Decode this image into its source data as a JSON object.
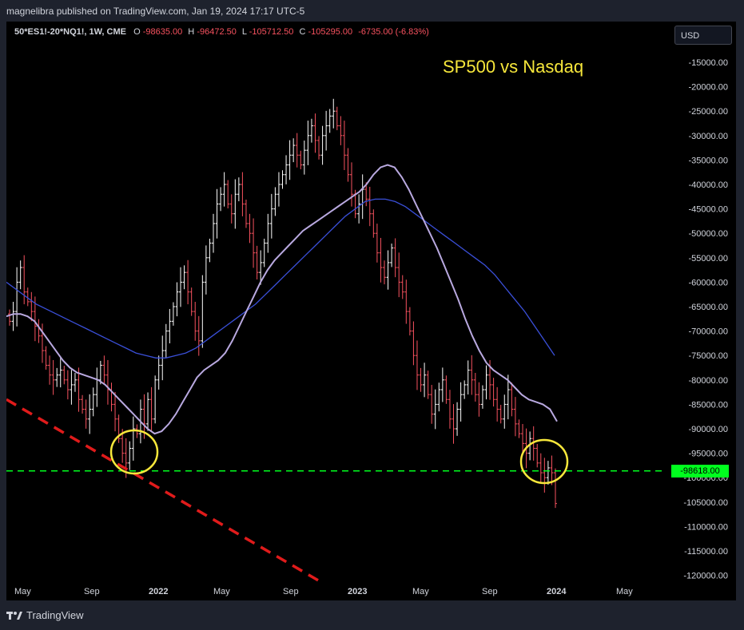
{
  "header": {
    "published": "magnelibra published on TradingView.com, Jan 19, 2024 17:17 UTC-5"
  },
  "legend": {
    "symbol": "50*ES1!-20*NQ1!, 1W, CME",
    "o_label": "O",
    "o_value": "-98635.00",
    "h_label": "H",
    "h_value": "-96472.50",
    "l_label": "L",
    "l_value": "-105712.50",
    "c_label": "C",
    "c_value": "-105295.00",
    "change": "-6735.00 (-6.83%)"
  },
  "currency_button": "USD",
  "price_tag": "-98618.00",
  "footer": {
    "brand": "TradingView"
  },
  "colors": {
    "up": "#ffffff",
    "down": "#f7525f",
    "ma_fast": "#b9a9e0",
    "ma_slow": "#3a4fd8",
    "support": "#00ff1e",
    "trendline": "#e01b1b",
    "circle": "#f7e73b"
  },
  "chart_data": {
    "type": "ohlc",
    "title": "SP500 vs Nasdaq",
    "ylim": [
      -123000,
      -11000
    ],
    "y_ticks": [
      "-15000.00",
      "-20000.00",
      "-25000.00",
      "-30000.00",
      "-35000.00",
      "-40000.00",
      "-45000.00",
      "-50000.00",
      "-55000.00",
      "-60000.00",
      "-65000.00",
      "-70000.00",
      "-75000.00",
      "-80000.00",
      "-85000.00",
      "-90000.00",
      "-95000.00",
      "-100000.00",
      "-105000.00",
      "-110000.00",
      "-115000.00",
      "-120000.00"
    ],
    "x_ticks": [
      {
        "label": "May",
        "bold": false
      },
      {
        "label": "Sep",
        "bold": false
      },
      {
        "label": "2022",
        "bold": true
      },
      {
        "label": "May",
        "bold": false
      },
      {
        "label": "Sep",
        "bold": false
      },
      {
        "label": "2023",
        "bold": true
      },
      {
        "label": "May",
        "bold": false
      },
      {
        "label": "Sep",
        "bold": false
      },
      {
        "label": "2024",
        "bold": true
      },
      {
        "label": "May",
        "bold": false
      }
    ],
    "price_closes": [
      -68000,
      -66000,
      -60000,
      -57000,
      -62000,
      -64000,
      -66000,
      -69000,
      -71000,
      -74000,
      -77000,
      -79000,
      -80000,
      -79000,
      -78000,
      -80000,
      -82000,
      -81000,
      -80000,
      -84000,
      -86000,
      -88000,
      -86000,
      -83000,
      -80000,
      -77000,
      -79000,
      -82000,
      -85000,
      -88000,
      -92000,
      -95000,
      -97000,
      -94000,
      -90000,
      -91000,
      -86000,
      -89000,
      -84000,
      -88000,
      -80000,
      -77000,
      -74000,
      -70000,
      -68000,
      -65000,
      -62000,
      -60000,
      -58000,
      -62000,
      -66000,
      -70000,
      -72000,
      -60000,
      -55000,
      -52000,
      -48000,
      -44000,
      -42000,
      -40000,
      -44000,
      -46000,
      -42000,
      -40000,
      -44000,
      -48000,
      -50000,
      -54000,
      -58000,
      -56000,
      -52000,
      -48000,
      -45000,
      -42000,
      -40000,
      -38000,
      -36000,
      -34000,
      -32000,
      -34000,
      -36000,
      -33000,
      -30000,
      -28000,
      -31000,
      -34000,
      -30000,
      -28000,
      -26000,
      -25000,
      -28000,
      -30000,
      -34000,
      -38000,
      -42000,
      -46000,
      -44000,
      -41000,
      -43000,
      -46000,
      -50000,
      -54000,
      -57000,
      -59000,
      -56000,
      -53000,
      -57000,
      -60000,
      -62000,
      -66000,
      -70000,
      -75000,
      -79000,
      -81000,
      -79000,
      -83000,
      -87000,
      -85000,
      -82000,
      -80000,
      -84000,
      -88000,
      -90000,
      -86000,
      -83000,
      -81000,
      -78000,
      -80000,
      -83000,
      -85000,
      -82000,
      -79000,
      -81000,
      -84000,
      -86000,
      -88000,
      -85000,
      -82000,
      -86000,
      -89000,
      -91000,
      -93000,
      -95000,
      -92000,
      -94000,
      -97000,
      -99000,
      -100000,
      -98000,
      -99000,
      -105295
    ],
    "ma_fast": [
      -67000,
      -66500,
      -66500,
      -67000,
      -68000,
      -70000,
      -72000,
      -74000,
      -76000,
      -77500,
      -78500,
      -79000,
      -79500,
      -80000,
      -81000,
      -82500,
      -84000,
      -85500,
      -87000,
      -88500,
      -90000,
      -91000,
      -90500,
      -89000,
      -87000,
      -84500,
      -82000,
      -79500,
      -78000,
      -77000,
      -76000,
      -74500,
      -72000,
      -69000,
      -66000,
      -63000,
      -60000,
      -57500,
      -55500,
      -54000,
      -52500,
      -51000,
      -49500,
      -48500,
      -47500,
      -46500,
      -45500,
      -44500,
      -43500,
      -42500,
      -41500,
      -40000,
      -38000,
      -36500,
      -36000,
      -36500,
      -38500,
      -41000,
      -44000,
      -47000,
      -50000,
      -53000,
      -56500,
      -60000,
      -63500,
      -67500,
      -71000,
      -74000,
      -76500,
      -78000,
      -79000,
      -80000,
      -81500,
      -83000,
      -84000,
      -84500,
      -85000,
      -86000,
      -88500
    ],
    "ma_slow": [
      -60000,
      -61500,
      -63000,
      -64500,
      -65500,
      -66500,
      -67500,
      -68500,
      -69500,
      -70500,
      -71500,
      -72500,
      -73500,
      -74500,
      -75000,
      -75500,
      -75500,
      -75000,
      -74500,
      -73500,
      -72000,
      -70500,
      -69000,
      -67500,
      -66000,
      -64500,
      -62500,
      -60500,
      -58500,
      -56500,
      -54500,
      -52500,
      -50500,
      -48500,
      -46500,
      -45000,
      -43500,
      -43000,
      -43000,
      -43500,
      -44500,
      -46000,
      -47500,
      -49000,
      -50500,
      -52000,
      -53500,
      -55000,
      -56500,
      -58500,
      -61000,
      -63500,
      -66000,
      -69000,
      -72000,
      -75000
    ],
    "support_level": -98618,
    "trendline": {
      "from": {
        "x": "2021-04",
        "y": -84000
      },
      "to": {
        "x": "2023-01",
        "y": -121000
      }
    },
    "highlight_circles": [
      "2021-12 low",
      "2024-01 low"
    ]
  }
}
